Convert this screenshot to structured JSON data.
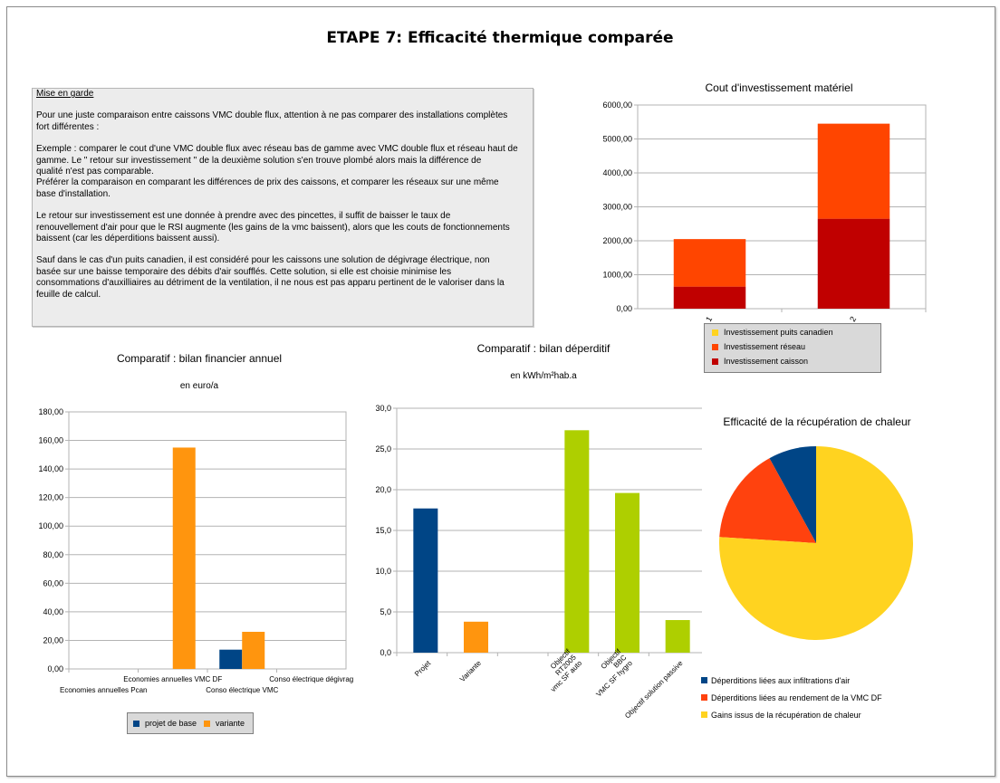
{
  "page": {
    "title": "ETAPE 7: Efficacité thermique comparée"
  },
  "warning": {
    "title": "Mise en garde",
    "paragraphs": [
      "Pour une juste comparaison entre caissons VMC double flux, attention à ne pas comparer des installations complètes\nfort différentes :",
      "Exemple : comparer le cout d'une VMC double flux avec réseau bas de gamme avec VMC double flux et réseau haut de\ngamme. Le \" retour sur investissement \"  de la deuxième solution s'en trouve plombé alors  mais la différence de\nqualité n'est pas comparable.\nPréférer la comparaison en comparant les différences de prix des caissons, et comparer les réseaux sur une même\nbase d'installation.",
      "Le retour sur investissement est une donnée à prendre avec des pincettes, il suffit de baisser le taux de\nrenouvellement d'air pour que le RSI augmente (les gains de la vmc baissent), alors que les couts de fonctionnements\nbaissent (car les déperditions baissent aussi).",
      "Sauf dans le cas d'un puits canadien, il est considéré pour les caissons une solution de dégivrage électrique, non\nbasée sur une baisse temporaire des débits d'air soufflés. Cette solution, si elle est choisie minimise les\nconsommations d'auxilliaires au détriment de la ventilation, il ne nous est pas apparu pertinent de le valoriser dans la\nfeuille de calcul."
    ]
  },
  "chart_data": [
    {
      "id": "investissement",
      "type": "bar",
      "stacked": true,
      "title": "Cout d'investissement matériel",
      "categories": [
        "1",
        "2"
      ],
      "series": [
        {
          "name": "Investissement caisson",
          "color": "#c00000",
          "values": [
            650,
            2650
          ]
        },
        {
          "name": "Investissement réseau",
          "color": "#ff4500",
          "values": [
            1400,
            2800
          ]
        },
        {
          "name": "Investissement puits canadien",
          "color": "#ffd320",
          "values": [
            0,
            0
          ]
        }
      ],
      "ylim": [
        0,
        6000
      ],
      "yticks": [
        "0,00",
        "1000,00",
        "2000,00",
        "3000,00",
        "4000,00",
        "5000,00",
        "6000,00"
      ],
      "legend_order": [
        "Investissement puits canadien",
        "Investissement réseau",
        "Investissement caisson"
      ],
      "grid": true,
      "legend": "bottom"
    },
    {
      "id": "financier",
      "type": "bar",
      "title": "Comparatif : bilan financier annuel",
      "subtitle": "en euro/a",
      "categories": [
        "Economies annuelles Pcan",
        "Economies annuelles VMC DF",
        "Conso électrique VMC",
        "Conso électrique dégivrage"
      ],
      "category_labels": [
        "Economies annuelles Pcan",
        "Economies annuelles VMC DF",
        "Conso électrique VMC",
        "Conso électrique dégivrag"
      ],
      "series": [
        {
          "name": "projet de base",
          "color": "#004586",
          "values": [
            0,
            0,
            13.5,
            0
          ]
        },
        {
          "name": "variante",
          "color": "#ff950e",
          "values": [
            0,
            155,
            26,
            0
          ]
        }
      ],
      "ylim": [
        0,
        180
      ],
      "yticks": [
        "0,00",
        "20,00",
        "40,00",
        "60,00",
        "80,00",
        "100,00",
        "120,00",
        "140,00",
        "160,00",
        "180,00"
      ],
      "grid": true,
      "legend": "bottom"
    },
    {
      "id": "deperditif",
      "type": "bar",
      "title": "Comparatif : bilan déperditif",
      "subtitle": "en kWh/m²hab.a",
      "categories": [
        "Projet",
        "Variante",
        "",
        "Objectif RT2005 vmc SF auto",
        "Objectif BBC VMC SF hygro",
        "Objectif solution passive"
      ],
      "category_lines": [
        [
          "Projet"
        ],
        [
          "Variante"
        ],
        [
          ""
        ],
        [
          "Objectif",
          "RT2005",
          "vmc SF auto"
        ],
        [
          "Objectif",
          "BBC",
          "VMC SF hygro"
        ],
        [
          "Objectif solution passive"
        ]
      ],
      "values": [
        17.7,
        3.8,
        0,
        27.3,
        19.6,
        4.0
      ],
      "colors": [
        "#004586",
        "#ff950e",
        "#aecf00",
        "#aecf00",
        "#aecf00",
        "#aecf00"
      ],
      "ylim": [
        0,
        30
      ],
      "yticks": [
        "0,0",
        "5,0",
        "10,0",
        "15,0",
        "20,0",
        "25,0",
        "30,0"
      ],
      "grid": true
    },
    {
      "id": "recuperation",
      "type": "pie",
      "title": "Efficacité de la récupération de chaleur",
      "slices": [
        {
          "name": "Déperditions liées aux infiltrations d'air",
          "color": "#004586",
          "value": 8
        },
        {
          "name": "Déperditions liées au rendement de la VMC DF",
          "color": "#ff420e",
          "value": 16
        },
        {
          "name": "Gains issus de la récupération de chaleur",
          "color": "#ffd320",
          "value": 76
        }
      ],
      "legend": "bottom"
    }
  ]
}
